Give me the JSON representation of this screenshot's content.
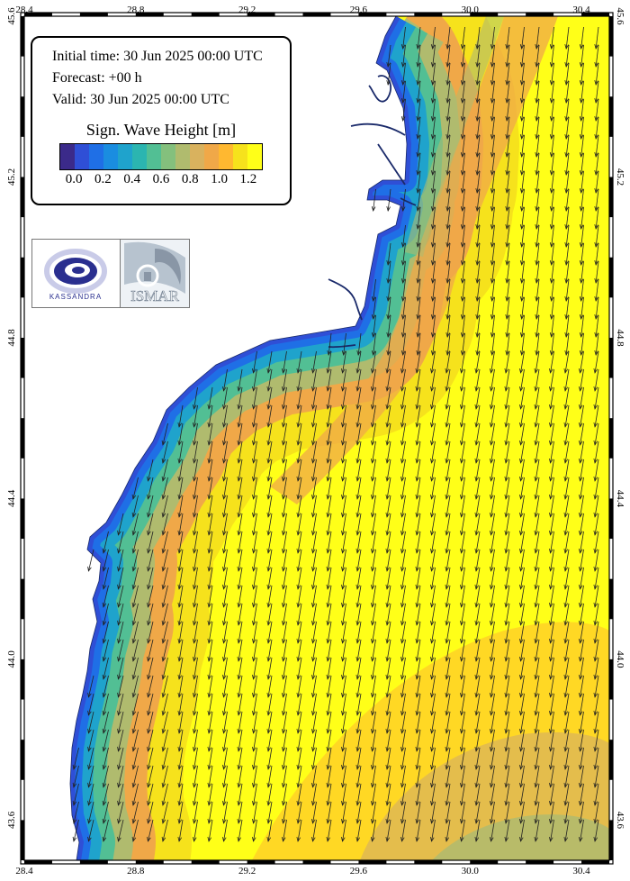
{
  "info": {
    "initial_time": "Initial time: 30 Jun 2025 00:00 UTC",
    "forecast": "Forecast: +00 h",
    "valid": "Valid: 30 Jun 2025 00:00 UTC"
  },
  "legend": {
    "title": "Sign. Wave Height [m]",
    "ticks": [
      "0.0",
      "0.2",
      "0.4",
      "0.6",
      "0.8",
      "1.0",
      "1.2"
    ],
    "min": -0.1,
    "max": 1.3,
    "colors": [
      "#3b2a8a",
      "#2f4fd6",
      "#1f6fe6",
      "#1a8de0",
      "#1fa3cc",
      "#2bb5b0",
      "#52bf94",
      "#84c07d",
      "#b0bb6e",
      "#d9b25e",
      "#f0a848",
      "#ffb830",
      "#f6e21c",
      "#ffff18"
    ]
  },
  "axes": {
    "lon_ticks": [
      "28.4",
      "28.8",
      "29.2",
      "29.6",
      "30.0",
      "30.4"
    ],
    "lat_ticks": [
      "45.6",
      "45.2",
      "44.8",
      "44.4",
      "44.0",
      "43.6"
    ]
  },
  "map": {
    "land_color": "#ffffff",
    "high_wave_color": "#ffff18"
  },
  "logos": {
    "kassandra": {
      "text": "KASSANDRA",
      "icon": "kassandra-swirl-icon"
    },
    "ismar": {
      "text": "ISMAR",
      "icon": "cnr-ismar-icon"
    }
  }
}
